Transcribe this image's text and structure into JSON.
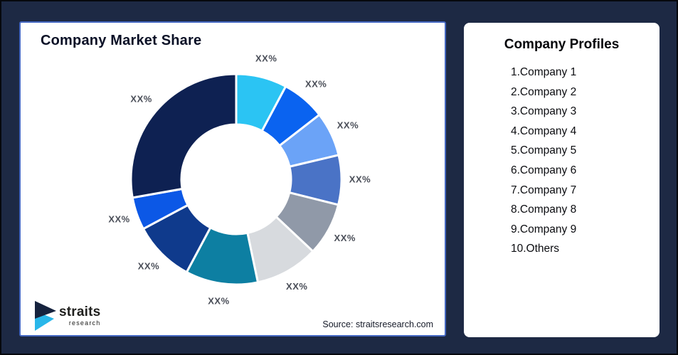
{
  "page": {
    "background": "#1d2944",
    "outer_border": "#06080d",
    "left_card_border": "#4568c2"
  },
  "left_card": {
    "title": "Company Market Share",
    "source": "Source: straitsresearch.com",
    "logo": {
      "brand": "straits",
      "brand_sub": "research",
      "navy": "#16233e",
      "cyan": "#29b7ea"
    }
  },
  "right_card": {
    "title": "Company Profiles",
    "items": [
      "1.Company 1",
      "2.Company 2",
      "3.Company 3",
      "4.Company 4",
      "5.Company 5",
      "6.Company 6",
      "7.Company 7",
      "8.Company 8",
      "9.Company 9",
      "10.Others"
    ]
  },
  "chart_data": {
    "type": "pie",
    "subtype": "donut",
    "title": "Company Market Share",
    "start_angle_deg": 0,
    "direction": "clockwise",
    "inner_radius_ratio": 0.52,
    "legend_position": "none",
    "categories": [
      "Company 1",
      "Company 2",
      "Company 3",
      "Company 4",
      "Company 5",
      "Company 6",
      "Company 7",
      "Company 8",
      "Company 9",
      "Others"
    ],
    "values": [
      7.8,
      6.7,
      6.8,
      7.6,
      8.1,
      9.7,
      11.1,
      9.4,
      5.0,
      27.8
    ],
    "value_labels": [
      "XX%",
      "XX%",
      "XX%",
      "XX%",
      "XX%",
      "XX%",
      "XX%",
      "XX%",
      "XX%",
      "XX%"
    ],
    "colors": [
      "#2bc4f3",
      "#0a63f0",
      "#6ba3f7",
      "#4a73c6",
      "#9099a8",
      "#d7dade",
      "#0d7fa2",
      "#0f3a8c",
      "#0c58e6",
      "#0e2152"
    ],
    "label_color": "#4a4e58"
  }
}
